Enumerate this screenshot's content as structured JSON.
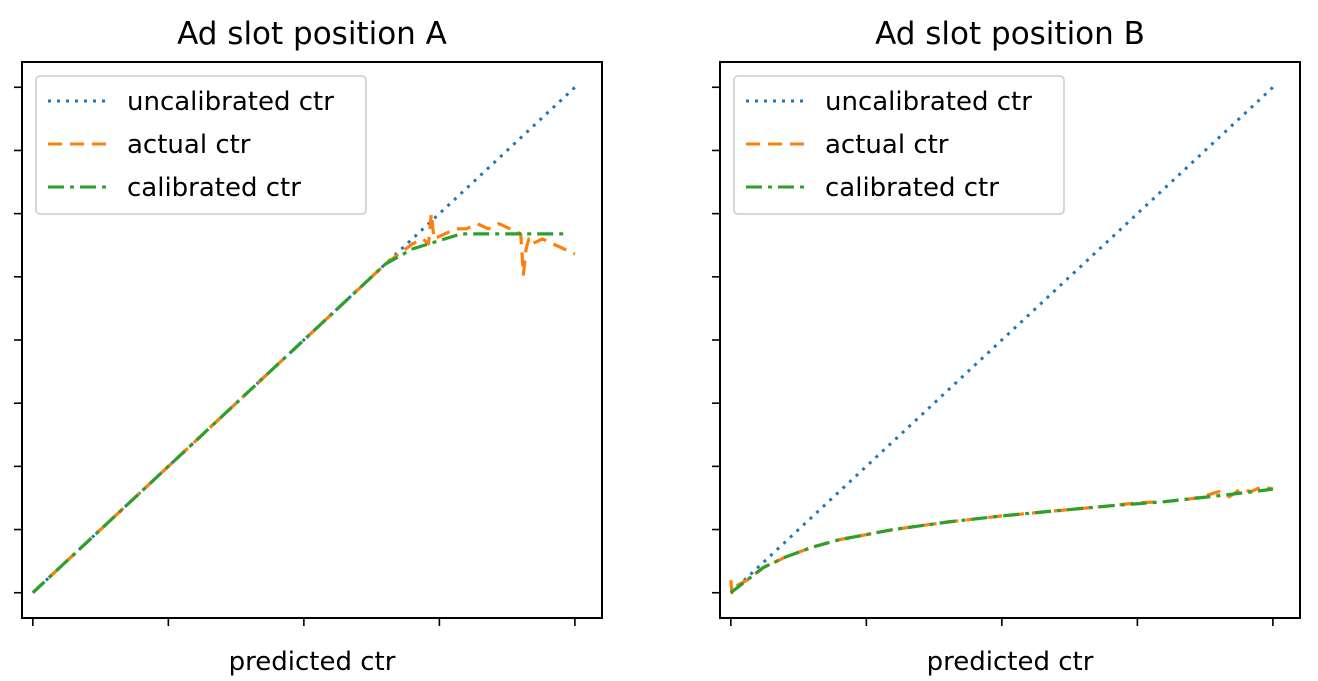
{
  "colors": {
    "uncalibrated": "#1f77b4",
    "actual": "#ff7f0e",
    "calibrated": "#2ca02c"
  },
  "chart_data": [
    {
      "type": "line",
      "title": "Ad slot position A",
      "xlabel": "predicted ctr",
      "ylabel": "",
      "tick_labels_visible": false,
      "grid": false,
      "legend": "top-left",
      "xlim": [
        -0.02,
        1.05
      ],
      "ylim": [
        -0.05,
        1.05
      ],
      "x_ticks": [
        0,
        0.25,
        0.5,
        0.75,
        1.0
      ],
      "y_ticks": [
        0,
        0.125,
        0.25,
        0.375,
        0.5,
        0.625,
        0.75,
        0.875,
        1.0
      ],
      "series": [
        {
          "name": "uncalibrated ctr",
          "color": "#1f77b4",
          "dash": "dotted",
          "x": [
            0,
            1.0
          ],
          "y": [
            0,
            1.0
          ]
        },
        {
          "name": "actual ctr",
          "color": "#ff7f0e",
          "dash": "dashed",
          "x": [
            0,
            0.1,
            0.2,
            0.3,
            0.4,
            0.5,
            0.6,
            0.65,
            0.7,
            0.72,
            0.73,
            0.735,
            0.74,
            0.76,
            0.78,
            0.8,
            0.82,
            0.84,
            0.86,
            0.88,
            0.9,
            0.905,
            0.91,
            0.915,
            0.92,
            0.94,
            0.96,
            0.98,
            1.0
          ],
          "y": [
            0,
            0.1,
            0.2,
            0.3,
            0.4,
            0.5,
            0.6,
            0.65,
            0.69,
            0.7,
            0.69,
            0.75,
            0.7,
            0.71,
            0.72,
            0.72,
            0.73,
            0.72,
            0.73,
            0.72,
            0.71,
            0.63,
            0.68,
            0.7,
            0.69,
            0.7,
            0.69,
            0.68,
            0.67
          ]
        },
        {
          "name": "calibrated ctr",
          "color": "#2ca02c",
          "dash": "dashdot",
          "x": [
            0,
            0.1,
            0.2,
            0.3,
            0.4,
            0.5,
            0.6,
            0.65,
            0.7,
            0.73,
            0.76,
            0.79,
            0.82,
            0.85,
            0.9,
            0.95,
            0.98
          ],
          "y": [
            0,
            0.1,
            0.2,
            0.3,
            0.4,
            0.5,
            0.6,
            0.65,
            0.68,
            0.69,
            0.7,
            0.71,
            0.71,
            0.71,
            0.71,
            0.71,
            0.71
          ]
        }
      ]
    },
    {
      "type": "line",
      "title": "Ad slot position B",
      "xlabel": "predicted ctr",
      "ylabel": "",
      "tick_labels_visible": false,
      "grid": false,
      "legend": "top-left",
      "xlim": [
        -0.02,
        1.05
      ],
      "ylim": [
        -0.05,
        1.05
      ],
      "x_ticks": [
        0,
        0.25,
        0.5,
        0.75,
        1.0
      ],
      "y_ticks": [
        0,
        0.125,
        0.25,
        0.375,
        0.5,
        0.625,
        0.75,
        0.875,
        1.0
      ],
      "series": [
        {
          "name": "uncalibrated ctr",
          "color": "#1f77b4",
          "dash": "dotted",
          "x": [
            0,
            1.0
          ],
          "y": [
            0,
            1.0
          ]
        },
        {
          "name": "actual ctr",
          "color": "#ff7f0e",
          "dash": "dashed",
          "x": [
            0,
            0.002,
            0.004,
            0.03,
            0.06,
            0.1,
            0.15,
            0.2,
            0.3,
            0.4,
            0.5,
            0.6,
            0.7,
            0.75,
            0.8,
            0.85,
            0.87,
            0.9,
            0.92,
            0.94,
            0.96,
            0.98,
            1.0
          ],
          "y": [
            0.025,
            0.0,
            0.01,
            0.025,
            0.05,
            0.07,
            0.09,
            0.105,
            0.125,
            0.14,
            0.152,
            0.162,
            0.172,
            0.178,
            0.18,
            0.186,
            0.19,
            0.2,
            0.19,
            0.205,
            0.2,
            0.21,
            0.205
          ]
        },
        {
          "name": "calibrated ctr",
          "color": "#2ca02c",
          "dash": "dashdot",
          "x": [
            0,
            0.03,
            0.06,
            0.1,
            0.15,
            0.2,
            0.3,
            0.4,
            0.5,
            0.6,
            0.7,
            0.8,
            0.9,
            0.95,
            1.0
          ],
          "y": [
            0,
            0.025,
            0.05,
            0.07,
            0.09,
            0.105,
            0.125,
            0.14,
            0.152,
            0.162,
            0.172,
            0.18,
            0.192,
            0.198,
            0.205
          ]
        }
      ]
    }
  ]
}
